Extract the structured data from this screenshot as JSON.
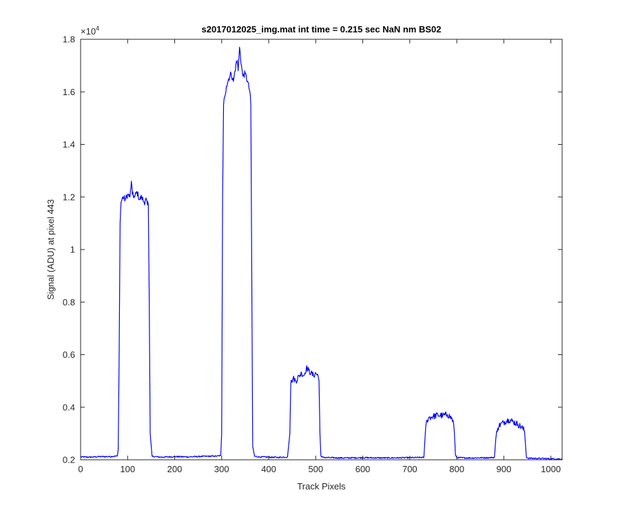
{
  "chart_data": {
    "type": "line",
    "title": "s2017012025_img.mat int time = 0.215 sec  NaN nm BS02",
    "xlabel": "Track Pixels",
    "ylabel": "Signal (ADU) at pixel 443",
    "exponent_label": "×10",
    "exponent_power": "4",
    "xlim": [
      0,
      1024
    ],
    "ylim": [
      0.2,
      1.8
    ],
    "xticks": [
      "0",
      "100",
      "200",
      "300",
      "400",
      "500",
      "600",
      "700",
      "800",
      "900",
      "1000"
    ],
    "yticks": [
      "0.2",
      "0.4",
      "0.6",
      "0.8",
      "1",
      "1.2",
      "1.4",
      "1.6",
      "1.8"
    ],
    "grid": false,
    "series": [
      {
        "color": "#0000ff",
        "x": [
          0,
          20,
          40,
          60,
          78,
          80,
          82,
          84,
          86,
          90,
          95,
          100,
          105,
          108,
          110,
          115,
          120,
          125,
          130,
          135,
          140,
          142,
          144,
          146,
          148,
          152,
          170,
          200,
          230,
          260,
          290,
          298,
          300,
          302,
          304,
          306,
          310,
          315,
          320,
          325,
          330,
          333,
          335,
          338,
          342,
          345,
          350,
          355,
          360,
          362,
          364,
          366,
          370,
          380,
          400,
          420,
          440,
          445,
          447,
          449,
          452,
          458,
          465,
          470,
          475,
          480,
          485,
          490,
          495,
          500,
          505,
          507,
          509,
          511,
          515,
          530,
          560,
          600,
          650,
          700,
          730,
          733,
          735,
          737,
          740,
          750,
          760,
          770,
          780,
          785,
          790,
          793,
          795,
          797,
          800,
          830,
          870,
          880,
          883,
          885,
          887,
          890,
          900,
          910,
          920,
          930,
          940,
          944,
          946,
          948,
          952,
          980,
          1000,
          1024
        ],
        "y": [
          0.211,
          0.21,
          0.212,
          0.212,
          0.214,
          0.24,
          0.6,
          1.1,
          1.18,
          1.2,
          1.19,
          1.21,
          1.2,
          1.26,
          1.21,
          1.2,
          1.22,
          1.19,
          1.2,
          1.18,
          1.19,
          1.17,
          1.17,
          0.8,
          0.3,
          0.213,
          0.21,
          0.212,
          0.211,
          0.213,
          0.214,
          0.216,
          0.3,
          1.2,
          1.55,
          1.58,
          1.62,
          1.65,
          1.67,
          1.64,
          1.7,
          1.72,
          1.68,
          1.77,
          1.7,
          1.66,
          1.67,
          1.64,
          1.6,
          1.55,
          0.9,
          0.25,
          0.213,
          0.211,
          0.21,
          0.209,
          0.211,
          0.3,
          0.49,
          0.5,
          0.51,
          0.5,
          0.52,
          0.53,
          0.52,
          0.55,
          0.54,
          0.53,
          0.52,
          0.53,
          0.52,
          0.5,
          0.3,
          0.215,
          0.209,
          0.208,
          0.207,
          0.208,
          0.207,
          0.208,
          0.209,
          0.3,
          0.34,
          0.35,
          0.36,
          0.365,
          0.37,
          0.368,
          0.372,
          0.365,
          0.355,
          0.34,
          0.3,
          0.22,
          0.208,
          0.207,
          0.208,
          0.209,
          0.28,
          0.31,
          0.32,
          0.33,
          0.343,
          0.353,
          0.345,
          0.335,
          0.32,
          0.31,
          0.26,
          0.21,
          0.206,
          0.205,
          0.204,
          0.203
        ]
      }
    ]
  }
}
